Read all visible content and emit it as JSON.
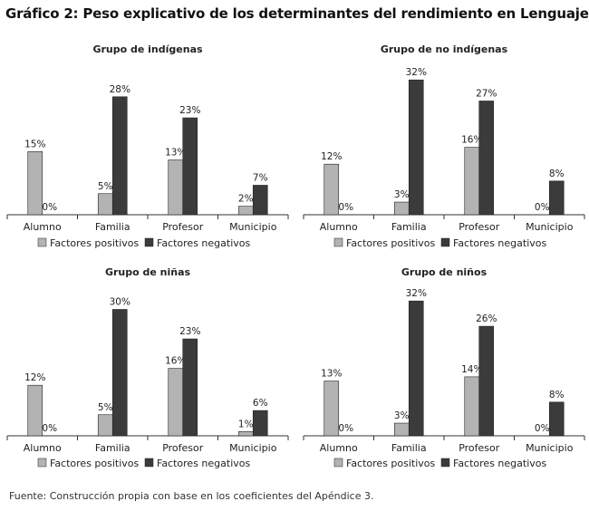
{
  "title": "Gráfico 2: Peso explicativo de los determinantes del rendimiento en Lenguaje",
  "source": "Fuente: Construcción propia con base en los coeficientes del Apéndice 3.",
  "colors": {
    "positive": "#b3b3b3",
    "negative": "#3b3b3b",
    "axis": "#333333",
    "text": "#222222"
  },
  "legend_labels": [
    "Factores positivos",
    "Factores negativos"
  ],
  "chart_data": [
    {
      "type": "bar",
      "title": "Grupo de indígenas",
      "categories": [
        "Alumno",
        "Familia",
        "Profesor",
        "Municipio"
      ],
      "series": [
        {
          "name": "Factores positivos",
          "values": [
            15,
            5,
            13,
            2
          ],
          "labels": [
            "15%",
            "5%",
            "13%",
            "2%"
          ]
        },
        {
          "name": "Factores negativos",
          "values": [
            0,
            28,
            23,
            7
          ],
          "labels": [
            "0%",
            "28%",
            "23%",
            "7%"
          ]
        }
      ],
      "ylim": [
        0,
        34
      ],
      "grid": false,
      "legend": "bottom"
    },
    {
      "type": "bar",
      "title": "Grupo de no indígenas",
      "categories": [
        "Alumno",
        "Familia",
        "Profesor",
        "Municipio"
      ],
      "series": [
        {
          "name": "Factores positivos",
          "values": [
            12,
            3,
            16,
            0
          ],
          "labels": [
            "12%",
            "3%",
            "16%",
            "0%"
          ]
        },
        {
          "name": "Factores negativos",
          "values": [
            0,
            32,
            27,
            8
          ],
          "labels": [
            "0%",
            "32%",
            "27%",
            "8%"
          ]
        }
      ],
      "ylim": [
        0,
        34
      ],
      "grid": false,
      "legend": "bottom"
    },
    {
      "type": "bar",
      "title": "Grupo de niñas",
      "categories": [
        "Alumno",
        "Familia",
        "Profesor",
        "Municipio"
      ],
      "series": [
        {
          "name": "Factores positivos",
          "values": [
            12,
            5,
            16,
            1
          ],
          "labels": [
            "12%",
            "5%",
            "16%",
            "1%"
          ]
        },
        {
          "name": "Factores negativos",
          "values": [
            0,
            30,
            23,
            6
          ],
          "labels": [
            "0%",
            "30%",
            "23%",
            "6%"
          ]
        }
      ],
      "ylim": [
        0,
        34
      ],
      "grid": false,
      "legend": "bottom"
    },
    {
      "type": "bar",
      "title": "Grupo de niños",
      "categories": [
        "Alumno",
        "Familia",
        "Profesor",
        "Municipio"
      ],
      "series": [
        {
          "name": "Factores positivos",
          "values": [
            13,
            3,
            14,
            0
          ],
          "labels": [
            "13%",
            "3%",
            "14%",
            "0%"
          ]
        },
        {
          "name": "Factores negativos",
          "values": [
            0,
            32,
            26,
            8
          ],
          "labels": [
            "0%",
            "32%",
            "26%",
            "8%"
          ]
        }
      ],
      "ylim": [
        0,
        34
      ],
      "grid": false,
      "legend": "bottom"
    }
  ]
}
